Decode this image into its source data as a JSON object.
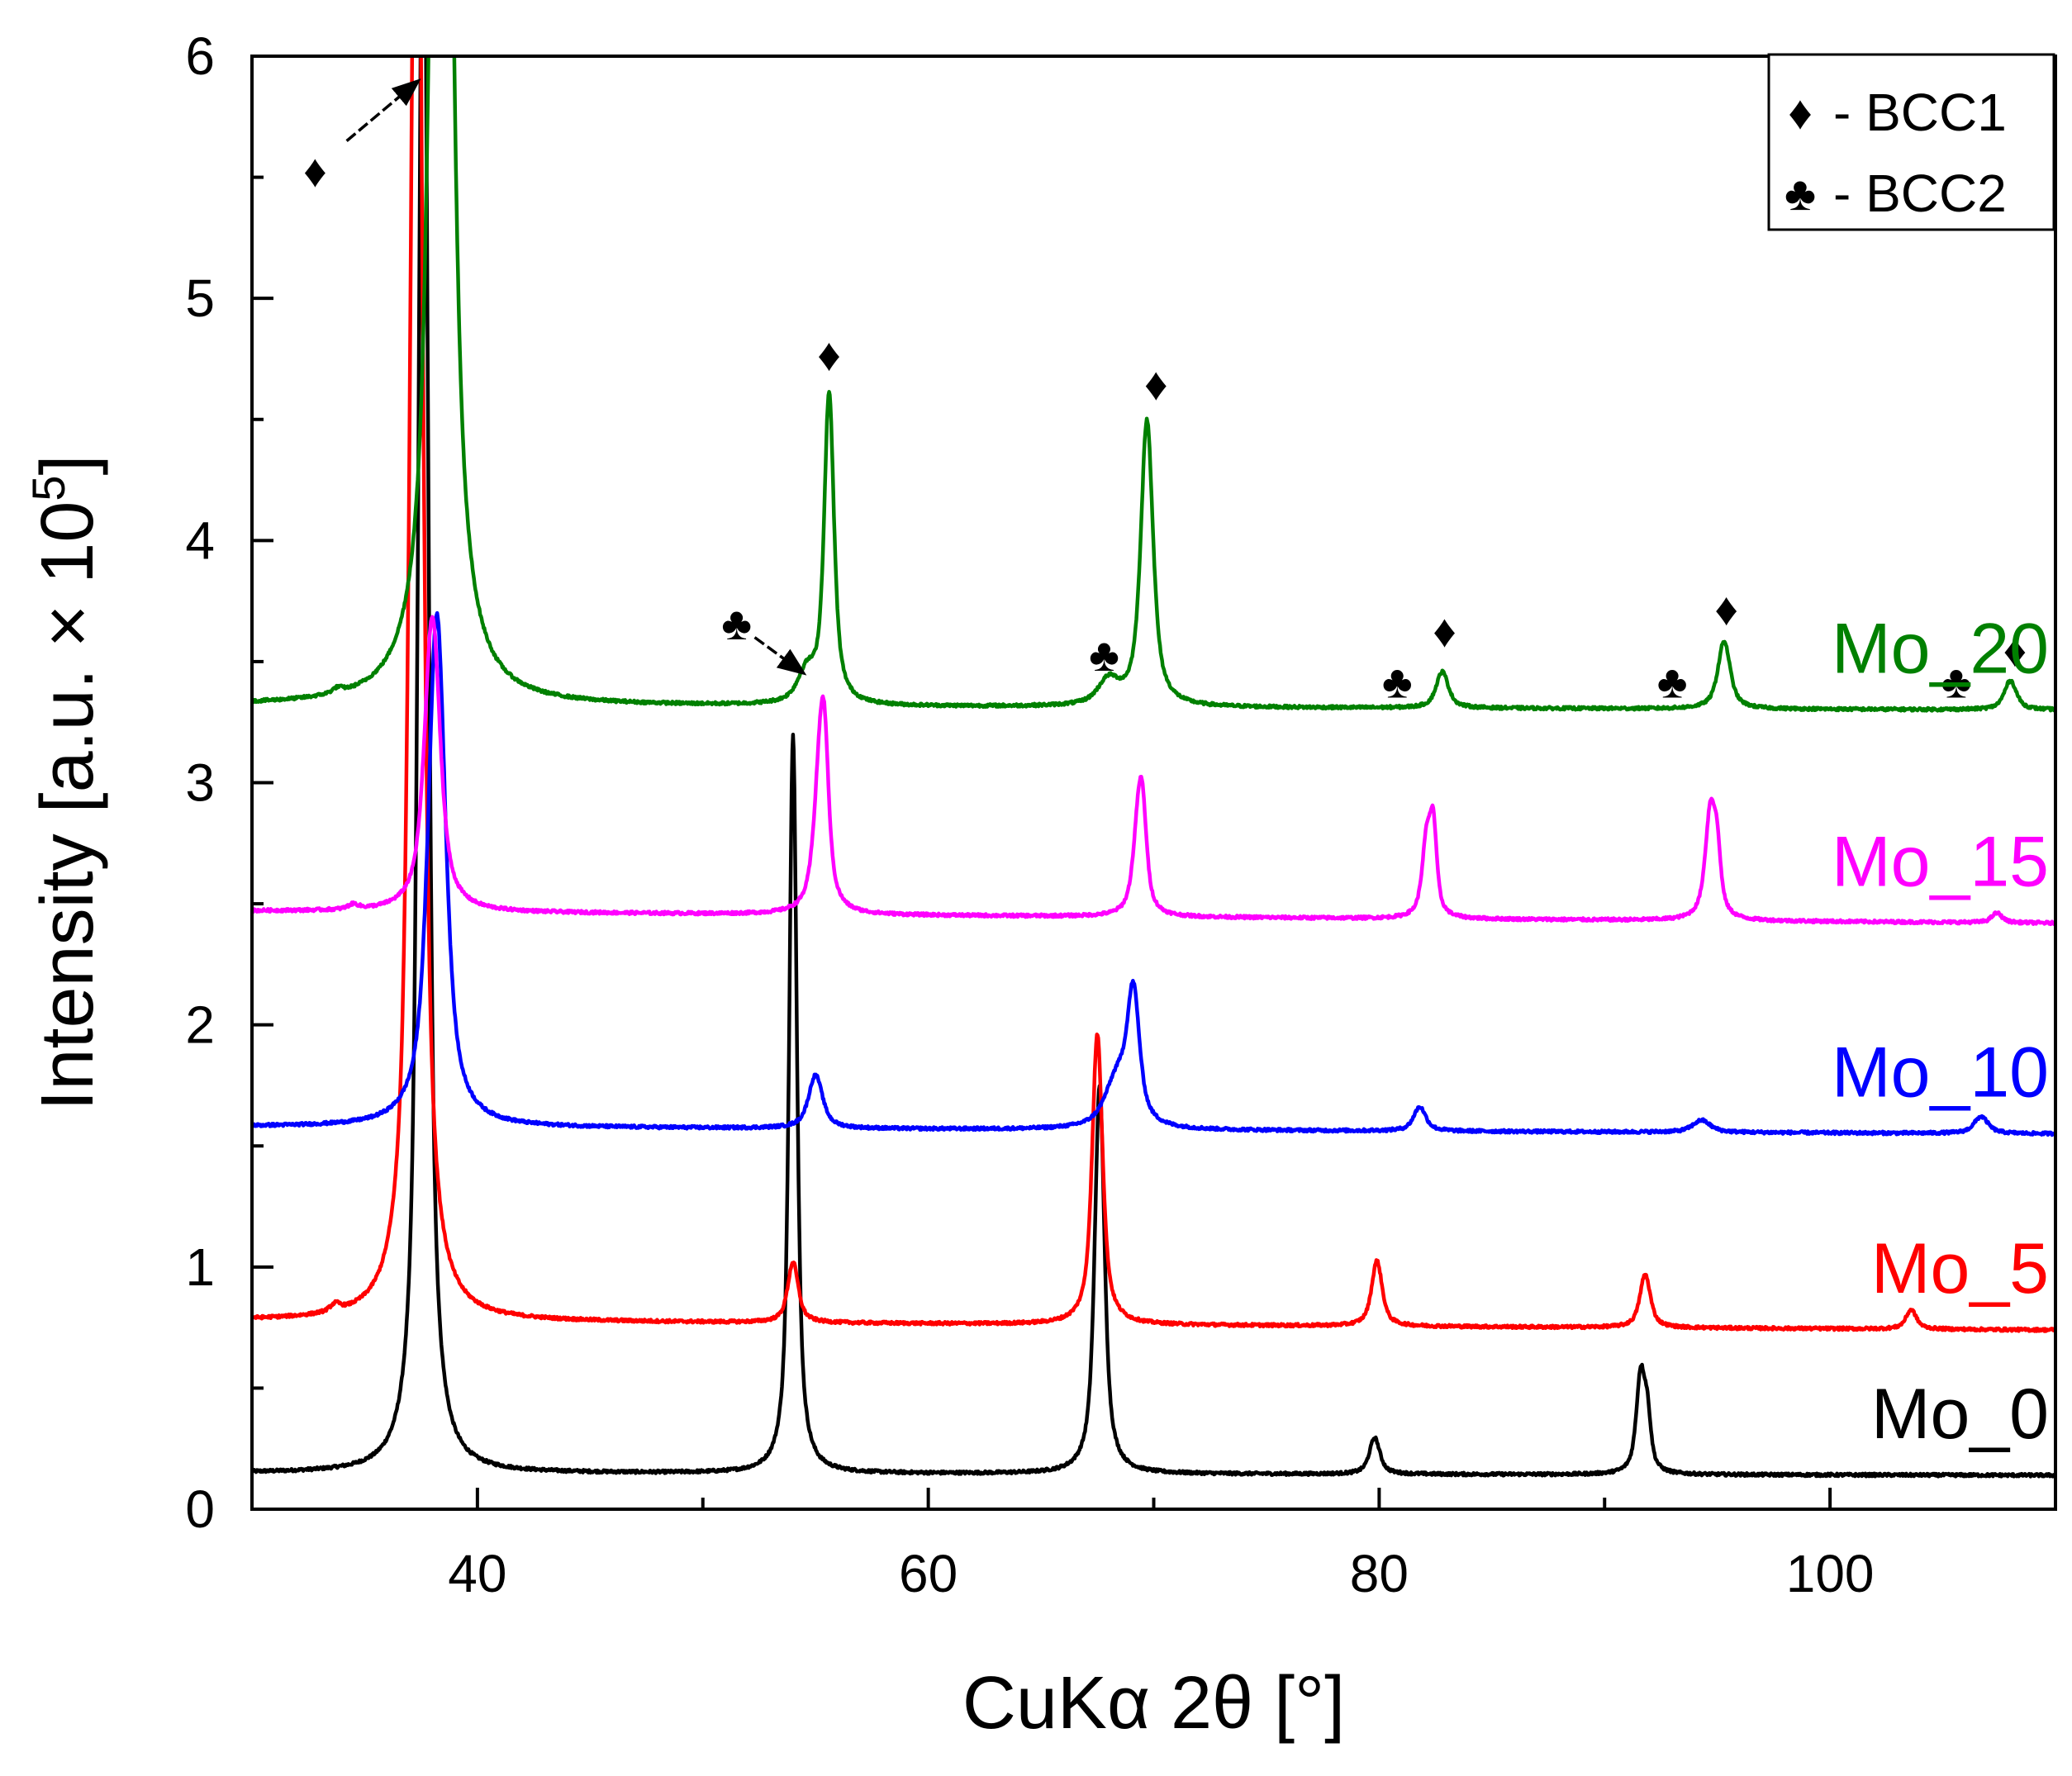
{
  "chart_data": {
    "type": "line",
    "title": "",
    "xlabel": "CuKα 2θ [°]",
    "ylabel": "Intensity [a.u. × 10",
    "ylabel_sup": "5",
    "ylabel_close": "]",
    "xlim": [
      30,
      110
    ],
    "ylim": [
      0,
      6
    ],
    "xticks": [
      40,
      60,
      80,
      100
    ],
    "yticks": [
      0,
      1,
      2,
      3,
      4,
      5,
      6
    ],
    "grid": false,
    "legend": {
      "position": "top-right",
      "items": [
        {
          "symbol": "♦",
          "label": "- BCC1"
        },
        {
          "symbol": "♣",
          "label": "- BCC2"
        }
      ]
    },
    "series": [
      {
        "name": "Mo_0",
        "color": "#000000",
        "baseline": 0.15,
        "slope": -0.01,
        "peaks": [
          {
            "x": 37.6,
            "h": 7.0,
            "w": 0.28
          },
          {
            "x": 54.0,
            "h": 3.05,
            "w": 0.22
          },
          {
            "x": 67.6,
            "h": 1.6,
            "w": 0.28
          },
          {
            "x": 79.8,
            "h": 0.15,
            "w": 0.3
          },
          {
            "x": 91.6,
            "h": 0.4,
            "w": 0.25
          },
          {
            "x": 91.9,
            "h": 0.2,
            "w": 0.2
          }
        ]
      },
      {
        "name": "Mo_5",
        "color": "#ff0000",
        "baseline": 0.78,
        "slope": -0.04,
        "peaks": [
          {
            "x": 33.7,
            "h": 0.03,
            "w": 0.3
          },
          {
            "x": 37.3,
            "h": 7.0,
            "w": 0.35
          },
          {
            "x": 54.0,
            "h": 0.25,
            "w": 0.3
          },
          {
            "x": 67.5,
            "h": 1.2,
            "w": 0.3
          },
          {
            "x": 79.9,
            "h": 0.27,
            "w": 0.3
          },
          {
            "x": 91.8,
            "h": 0.22,
            "w": 0.3
          },
          {
            "x": 103.6,
            "h": 0.08,
            "w": 0.3
          }
        ]
      },
      {
        "name": "Mo_10",
        "color": "#0000ff",
        "baseline": 1.58,
        "slope": -0.03,
        "peaks": [
          {
            "x": 38.2,
            "h": 2.12,
            "w": 0.5
          },
          {
            "x": 55.0,
            "h": 0.22,
            "w": 0.4
          },
          {
            "x": 68.4,
            "h": 0.2,
            "w": 0.7
          },
          {
            "x": 69.1,
            "h": 0.52,
            "w": 0.35
          },
          {
            "x": 81.8,
            "h": 0.1,
            "w": 0.35
          },
          {
            "x": 94.3,
            "h": 0.05,
            "w": 0.5
          },
          {
            "x": 106.7,
            "h": 0.07,
            "w": 0.4
          }
        ]
      },
      {
        "name": "Mo_15",
        "color": "#ff00ff",
        "baseline": 2.47,
        "slope": -0.05,
        "peaks": [
          {
            "x": 34.5,
            "h": 0.02,
            "w": 0.3
          },
          {
            "x": 38.0,
            "h": 1.22,
            "w": 0.45
          },
          {
            "x": 55.2,
            "h": 0.55,
            "w": 0.35
          },
          {
            "x": 55.4,
            "h": 0.45,
            "w": 0.25
          },
          {
            "x": 69.3,
            "h": 0.3,
            "w": 0.3
          },
          {
            "x": 69.5,
            "h": 0.35,
            "w": 0.25
          },
          {
            "x": 82.1,
            "h": 0.3,
            "w": 0.25
          },
          {
            "x": 82.4,
            "h": 0.35,
            "w": 0.2
          },
          {
            "x": 94.7,
            "h": 0.45,
            "w": 0.3
          },
          {
            "x": 95.0,
            "h": 0.2,
            "w": 0.2
          },
          {
            "x": 107.4,
            "h": 0.04,
            "w": 0.3
          }
        ]
      },
      {
        "name": "Mo_20",
        "color": "#008000",
        "baseline": 3.32,
        "slope": -0.02,
        "peaks": [
          {
            "x": 33.8,
            "h": 0.02,
            "w": 0.3
          },
          {
            "x": 38.4,
            "h": 7.0,
            "w": 0.5
          },
          {
            "x": 54.6,
            "h": 0.12,
            "w": 0.5
          },
          {
            "x": 55.6,
            "h": 1.28,
            "w": 0.28
          },
          {
            "x": 68.0,
            "h": 0.1,
            "w": 0.6
          },
          {
            "x": 69.7,
            "h": 1.18,
            "w": 0.35
          },
          {
            "x": 82.8,
            "h": 0.15,
            "w": 0.35
          },
          {
            "x": 95.3,
            "h": 0.28,
            "w": 0.35
          },
          {
            "x": 108.0,
            "h": 0.12,
            "w": 0.35
          }
        ]
      }
    ],
    "annotations": [
      {
        "symbol": "♦",
        "x": 32.8,
        "y": 5.53
      },
      {
        "symbol": "♣",
        "x": 51.5,
        "y": 3.66
      },
      {
        "symbol": "♦",
        "x": 55.6,
        "y": 4.77
      },
      {
        "symbol": "♣",
        "x": 67.8,
        "y": 3.53
      },
      {
        "symbol": "♦",
        "x": 70.1,
        "y": 4.65
      },
      {
        "symbol": "♣",
        "x": 80.8,
        "y": 3.42
      },
      {
        "symbol": "♦",
        "x": 82.9,
        "y": 3.63
      },
      {
        "symbol": "♣",
        "x": 93.0,
        "y": 3.42
      },
      {
        "symbol": "♦",
        "x": 95.4,
        "y": 3.72
      },
      {
        "symbol": "♣",
        "x": 105.6,
        "y": 3.42
      },
      {
        "symbol": "♦",
        "x": 108.2,
        "y": 3.55
      }
    ],
    "arrows": [
      {
        "from": [
          34.2,
          5.65
        ],
        "to": [
          37.4,
          5.9
        ]
      },
      {
        "from": [
          52.3,
          3.6
        ],
        "to": [
          54.5,
          3.45
        ]
      }
    ]
  }
}
